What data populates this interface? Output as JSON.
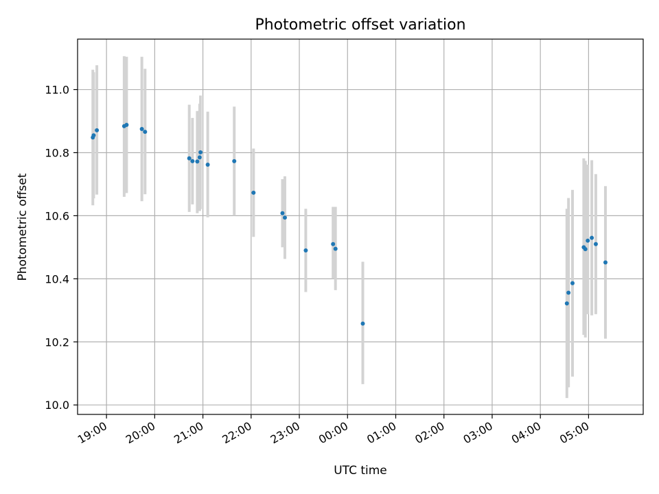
{
  "chart_data": {
    "type": "scatter",
    "title": "Photometric offset variation",
    "xlabel": "UTC time",
    "ylabel": "Photometric offset",
    "x_axis_kind": "time",
    "xlim": [
      "18:24",
      "06:08"
    ],
    "ylim": [
      9.97,
      11.16
    ],
    "grid": true,
    "x_tick_labels": [
      "19:00",
      "20:00",
      "21:00",
      "22:00",
      "23:00",
      "00:00",
      "01:00",
      "02:00",
      "03:00",
      "04:00",
      "05:00"
    ],
    "y_ticks": [
      10.0,
      10.2,
      10.4,
      10.6,
      10.8,
      11.0
    ],
    "y_tick_labels": [
      "10.0",
      "10.2",
      "10.4",
      "10.6",
      "10.8",
      "11.0"
    ],
    "colors": {
      "point": "#1f77b4",
      "errorbar": "#d3d3d3",
      "grid": "#b0b0b0"
    },
    "points": [
      {
        "t": "18:43",
        "y": 10.848,
        "lo": 10.633,
        "hi": 11.063
      },
      {
        "t": "18:44",
        "y": 10.855,
        "lo": 10.655,
        "hi": 11.055
      },
      {
        "t": "18:48",
        "y": 10.871,
        "lo": 10.667,
        "hi": 11.077
      },
      {
        "t": "19:22",
        "y": 10.884,
        "lo": 10.66,
        "hi": 11.106
      },
      {
        "t": "19:25",
        "y": 10.888,
        "lo": 10.672,
        "hi": 11.104
      },
      {
        "t": "19:44",
        "y": 10.875,
        "lo": 10.646,
        "hi": 11.104
      },
      {
        "t": "19:48",
        "y": 10.866,
        "lo": 10.668,
        "hi": 11.066
      },
      {
        "t": "20:43",
        "y": 10.782,
        "lo": 10.612,
        "hi": 10.952
      },
      {
        "t": "20:47",
        "y": 10.773,
        "lo": 10.636,
        "hi": 10.91
      },
      {
        "t": "20:53",
        "y": 10.772,
        "lo": 10.608,
        "hi": 10.932
      },
      {
        "t": "20:56",
        "y": 10.785,
        "lo": 10.615,
        "hi": 10.955
      },
      {
        "t": "20:57",
        "y": 10.801,
        "lo": 10.621,
        "hi": 10.981
      },
      {
        "t": "21:06",
        "y": 10.762,
        "lo": 10.595,
        "hi": 10.93
      },
      {
        "t": "21:39",
        "y": 10.773,
        "lo": 10.6,
        "hi": 10.946
      },
      {
        "t": "22:03",
        "y": 10.673,
        "lo": 10.533,
        "hi": 10.813
      },
      {
        "t": "22:39",
        "y": 10.608,
        "lo": 10.5,
        "hi": 10.716
      },
      {
        "t": "22:42",
        "y": 10.594,
        "lo": 10.463,
        "hi": 10.725
      },
      {
        "t": "23:08",
        "y": 10.49,
        "lo": 10.358,
        "hi": 10.622
      },
      {
        "t": "23:42",
        "y": 10.51,
        "lo": 10.4,
        "hi": 10.628
      },
      {
        "t": "23:45",
        "y": 10.495,
        "lo": 10.364,
        "hi": 10.628
      },
      {
        "t": "00:19",
        "y": 10.258,
        "lo": 10.066,
        "hi": 10.454
      },
      {
        "t": "04:33",
        "y": 10.322,
        "lo": 10.022,
        "hi": 10.622
      },
      {
        "t": "04:35",
        "y": 10.356,
        "lo": 10.056,
        "hi": 10.656
      },
      {
        "t": "04:40",
        "y": 10.386,
        "lo": 10.09,
        "hi": 10.682
      },
      {
        "t": "04:54",
        "y": 10.5,
        "lo": 10.222,
        "hi": 10.782
      },
      {
        "t": "04:56",
        "y": 10.494,
        "lo": 10.214,
        "hi": 10.774
      },
      {
        "t": "04:59",
        "y": 10.521,
        "lo": 10.288,
        "hi": 10.762
      },
      {
        "t": "05:04",
        "y": 10.53,
        "lo": 10.284,
        "hi": 10.776
      },
      {
        "t": "05:09",
        "y": 10.51,
        "lo": 10.288,
        "hi": 10.732
      },
      {
        "t": "05:21",
        "y": 10.452,
        "lo": 10.21,
        "hi": 10.694
      }
    ]
  }
}
